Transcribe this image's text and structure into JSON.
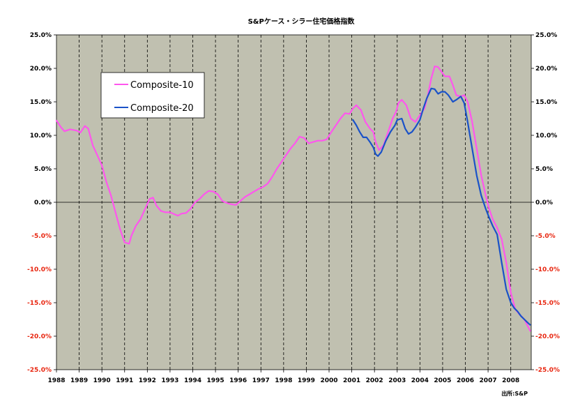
{
  "chart_data": {
    "type": "line",
    "title": "S&Pケース・シラー住宅価格指数",
    "source": "出所:S&P",
    "xlabel": "",
    "ylabel": "",
    "x_range": [
      1988.0,
      2008.9
    ],
    "ylim": [
      -25.0,
      25.0
    ],
    "x_ticks": [
      "1988",
      "1989",
      "1990",
      "1991",
      "1992",
      "1993",
      "1994",
      "1995",
      "1996",
      "1997",
      "1998",
      "1999",
      "2000",
      "2001",
      "2002",
      "2003",
      "2004",
      "2005",
      "2006",
      "2007",
      "2008"
    ],
    "y_ticks": [
      "25.0%",
      "20.0%",
      "15.0%",
      "10.0%",
      "5.0%",
      "0.0%",
      "-5.0%",
      "-10.0%",
      "-15.0%",
      "-20.0%",
      "-25.0%"
    ],
    "y_tick_values": [
      25,
      20,
      15,
      10,
      5,
      0,
      -5,
      -10,
      -15,
      -20,
      -25
    ],
    "grid": "vertical dashed lines at each year",
    "legend_position": "top-left",
    "colors": {
      "plot_background": "#c0c0b0",
      "negative_tick_labels": "#e8250f",
      "positive_tick_labels": "#000000"
    },
    "series": [
      {
        "name": "Composite-10",
        "color": "#ff55ee",
        "x": [
          1988.0,
          1988.2,
          1988.35,
          1988.6,
          1988.9,
          1989.05,
          1989.25,
          1989.4,
          1989.6,
          1989.8,
          1990.0,
          1990.2,
          1990.4,
          1990.6,
          1990.8,
          1991.0,
          1991.2,
          1991.3,
          1991.5,
          1991.7,
          1991.9,
          1992.1,
          1992.25,
          1992.4,
          1992.6,
          1992.8,
          1993.0,
          1993.2,
          1993.35,
          1993.5,
          1993.7,
          1993.9,
          1994.1,
          1994.3,
          1994.5,
          1994.7,
          1994.9,
          1995.1,
          1995.3,
          1995.5,
          1995.7,
          1995.9,
          1996.1,
          1996.3,
          1996.5,
          1996.7,
          1996.9,
          1997.1,
          1997.3,
          1997.5,
          1997.7,
          1997.9,
          1998.1,
          1998.3,
          1998.5,
          1998.7,
          1998.9,
          1999.1,
          1999.3,
          1999.5,
          1999.7,
          1999.9,
          2000.1,
          2000.3,
          2000.5,
          2000.7,
          2000.9,
          2001.05,
          2001.2,
          2001.4,
          2001.6,
          2001.8,
          2001.95,
          2002.05,
          2002.2,
          2002.4,
          2002.6,
          2002.8,
          2002.95,
          2003.05,
          2003.2,
          2003.4,
          2003.6,
          2003.8,
          2004.0,
          2004.2,
          2004.35,
          2004.5,
          2004.65,
          2004.8,
          2004.95,
          2005.1,
          2005.3,
          2005.45,
          2005.6,
          2005.8,
          2005.95,
          2006.1,
          2006.3,
          2006.5,
          2006.7,
          2006.9,
          2007.05,
          2007.2,
          2007.4,
          2007.6,
          2007.8,
          2008.0,
          2008.2,
          2008.4,
          2008.6,
          2008.75,
          2008.85
        ],
        "values": [
          12.2,
          11.2,
          10.6,
          10.9,
          10.7,
          10.4,
          11.4,
          11.0,
          8.5,
          7.0,
          5.5,
          3.0,
          1.0,
          -1.5,
          -4.0,
          -6.0,
          -6.2,
          -5.0,
          -3.5,
          -2.5,
          -1.0,
          0.5,
          0.7,
          -0.5,
          -1.3,
          -1.5,
          -1.5,
          -1.8,
          -2.0,
          -1.7,
          -1.6,
          -1.0,
          0.0,
          0.5,
          1.2,
          1.7,
          1.6,
          1.2,
          0.2,
          -0.1,
          -0.3,
          -0.4,
          0.2,
          0.8,
          1.2,
          1.6,
          2.0,
          2.3,
          2.8,
          3.8,
          5.0,
          6.0,
          7.0,
          8.0,
          8.8,
          9.8,
          9.6,
          8.8,
          9.0,
          9.2,
          9.2,
          9.4,
          10.5,
          11.5,
          12.5,
          13.3,
          13.2,
          14.0,
          14.5,
          13.8,
          12.0,
          11.0,
          10.5,
          9.0,
          7.8,
          8.5,
          10.5,
          12.5,
          13.5,
          14.8,
          15.3,
          14.5,
          12.5,
          12.0,
          13.0,
          14.0,
          16.0,
          18.5,
          20.3,
          20.2,
          19.5,
          18.8,
          18.8,
          17.5,
          16.0,
          15.8,
          16.0,
          15.0,
          12.0,
          8.0,
          4.0,
          1.0,
          -1.0,
          -2.5,
          -3.8,
          -5.5,
          -9.0,
          -13.5,
          -16.0,
          -16.8,
          -17.5,
          -18.5,
          -19.2
        ]
      },
      {
        "name": "Composite-20",
        "color": "#1a52c8",
        "x": [
          2001.05,
          2001.2,
          2001.35,
          2001.5,
          2001.65,
          2001.8,
          2001.95,
          2002.05,
          2002.15,
          2002.3,
          2002.5,
          2002.7,
          2002.9,
          2003.0,
          2003.2,
          2003.35,
          2003.5,
          2003.65,
          2003.8,
          2004.0,
          2004.15,
          2004.3,
          2004.5,
          2004.65,
          2004.8,
          2004.95,
          2005.1,
          2005.25,
          2005.45,
          2005.6,
          2005.8,
          2005.95,
          2006.1,
          2006.3,
          2006.5,
          2006.7,
          2006.9,
          2007.05,
          2007.2,
          2007.4,
          2007.6,
          2007.8,
          2008.0,
          2008.15,
          2008.3,
          2008.45,
          2008.6,
          2008.75,
          2008.85
        ],
        "values": [
          12.3,
          11.5,
          10.5,
          9.7,
          9.7,
          9.0,
          8.2,
          7.2,
          6.9,
          7.5,
          9.2,
          10.5,
          11.5,
          12.3,
          12.5,
          11.0,
          10.2,
          10.5,
          11.2,
          12.3,
          14.0,
          15.5,
          17.0,
          16.9,
          16.2,
          16.5,
          16.5,
          16.0,
          15.0,
          15.3,
          15.8,
          14.8,
          12.0,
          8.0,
          4.0,
          1.0,
          -1.0,
          -2.3,
          -3.5,
          -4.8,
          -9.0,
          -13.0,
          -15.0,
          -15.8,
          -16.3,
          -17.0,
          -17.5,
          -18.0,
          -18.3
        ]
      }
    ]
  }
}
